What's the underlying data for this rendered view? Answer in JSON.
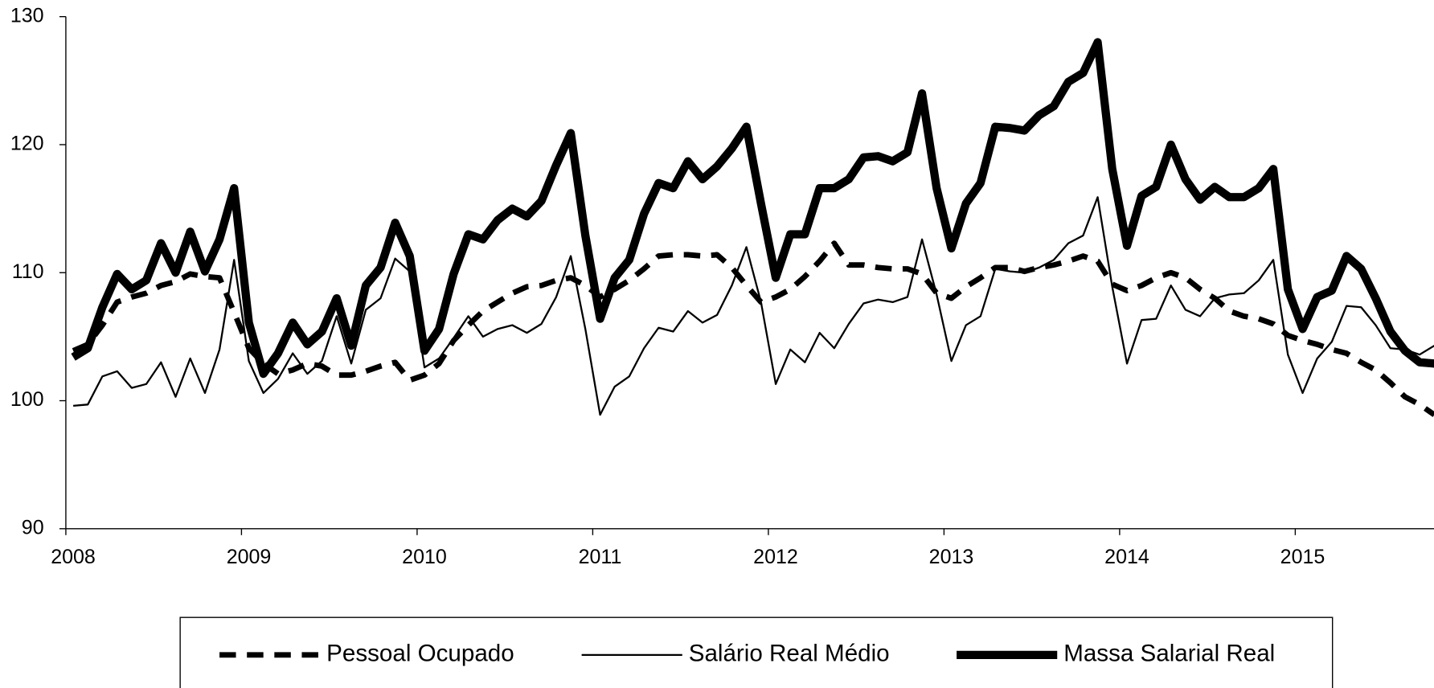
{
  "chart_data": {
    "type": "line",
    "x": [
      2008.042,
      2008.125,
      2008.208,
      2008.292,
      2008.375,
      2008.458,
      2008.542,
      2008.625,
      2008.708,
      2008.792,
      2008.875,
      2008.958,
      2009.042,
      2009.125,
      2009.208,
      2009.292,
      2009.375,
      2009.458,
      2009.542,
      2009.625,
      2009.708,
      2009.792,
      2009.875,
      2009.958,
      2010.042,
      2010.125,
      2010.208,
      2010.292,
      2010.375,
      2010.458,
      2010.542,
      2010.625,
      2010.708,
      2010.792,
      2010.875,
      2010.958,
      2011.042,
      2011.125,
      2011.208,
      2011.292,
      2011.375,
      2011.458,
      2011.542,
      2011.625,
      2011.708,
      2011.792,
      2011.875,
      2011.958,
      2012.042,
      2012.125,
      2012.208,
      2012.292,
      2012.375,
      2012.458,
      2012.542,
      2012.625,
      2012.708,
      2012.792,
      2012.875,
      2012.958,
      2013.042,
      2013.125,
      2013.208,
      2013.292,
      2013.375,
      2013.458,
      2013.542,
      2013.625,
      2013.708,
      2013.792,
      2013.875,
      2013.958,
      2014.042,
      2014.125,
      2014.208,
      2014.292,
      2014.375,
      2014.458,
      2014.542,
      2014.625,
      2014.708,
      2014.792,
      2014.875,
      2014.958,
      2015.042,
      2015.125,
      2015.208,
      2015.292,
      2015.375,
      2015.458,
      2015.542,
      2015.625,
      2015.708,
      2015.792
    ],
    "series": [
      {
        "name": "Pessoal Ocupado",
        "color": "#000000",
        "line_width": 6,
        "dashed": true,
        "values": [
          103.9,
          104.4,
          105.9,
          107.7,
          108.1,
          108.4,
          109.0,
          109.3,
          109.9,
          109.7,
          109.6,
          106.9,
          104.1,
          102.9,
          102.1,
          102.4,
          102.9,
          102.7,
          102.0,
          102.0,
          102.3,
          102.7,
          103.0,
          101.6,
          102.0,
          102.9,
          104.7,
          105.9,
          107.0,
          107.7,
          108.4,
          108.9,
          109.0,
          109.4,
          109.6,
          109.0,
          108.1,
          108.7,
          109.4,
          110.3,
          111.3,
          111.4,
          111.4,
          111.3,
          111.4,
          110.4,
          109.0,
          107.7,
          108.1,
          108.7,
          109.7,
          110.9,
          112.3,
          110.6,
          110.6,
          110.4,
          110.3,
          110.3,
          109.9,
          108.4,
          108.0,
          108.9,
          109.6,
          110.4,
          110.4,
          110.1,
          110.4,
          110.6,
          110.9,
          111.3,
          110.9,
          109.1,
          108.6,
          109.0,
          109.6,
          110.0,
          109.6,
          108.7,
          108.0,
          107.0,
          106.6,
          106.4,
          106.0,
          105.1,
          104.7,
          104.4,
          104.0,
          103.7,
          103.0,
          102.4,
          101.4,
          100.3,
          99.7,
          98.9
        ]
      },
      {
        "name": "Salário Real Médio",
        "color": "#000000",
        "line_width": 2,
        "dashed": false,
        "values": [
          99.6,
          99.7,
          101.9,
          102.3,
          101.0,
          101.3,
          103.0,
          100.3,
          103.3,
          100.6,
          104.0,
          111.0,
          103.1,
          100.6,
          101.7,
          103.7,
          102.1,
          103.1,
          106.6,
          102.9,
          107.1,
          108.0,
          111.1,
          110.1,
          102.6,
          103.3,
          104.9,
          106.6,
          105.0,
          105.6,
          105.9,
          105.3,
          106.0,
          108.1,
          111.3,
          105.6,
          98.9,
          101.1,
          101.9,
          104.1,
          105.7,
          105.4,
          107.0,
          106.1,
          106.7,
          109.0,
          112.0,
          107.7,
          101.3,
          104.0,
          103.0,
          105.3,
          104.1,
          106.0,
          107.6,
          107.9,
          107.7,
          108.1,
          112.6,
          108.3,
          103.1,
          105.9,
          106.6,
          110.3,
          110.1,
          110.0,
          110.4,
          111.0,
          112.3,
          112.9,
          115.9,
          108.9,
          102.9,
          106.3,
          106.4,
          109.0,
          107.1,
          106.6,
          108.0,
          108.3,
          108.4,
          109.4,
          111.0,
          103.6,
          100.6,
          103.3,
          104.6,
          107.4,
          107.3,
          105.9,
          104.1,
          104.0,
          103.6,
          104.3
        ]
      },
      {
        "name": "Massa Salarial Real",
        "color": "#000000",
        "line_width": 9,
        "dashed": false,
        "values": [
          103.4,
          104.1,
          107.3,
          109.9,
          108.7,
          109.4,
          112.3,
          110.0,
          113.2,
          110.1,
          112.6,
          116.6,
          106.1,
          102.1,
          103.7,
          106.1,
          104.4,
          105.4,
          108.0,
          104.3,
          109.0,
          110.4,
          113.9,
          111.3,
          103.9,
          105.6,
          109.9,
          113.0,
          112.6,
          114.1,
          115.0,
          114.4,
          115.6,
          118.4,
          120.9,
          112.9,
          106.4,
          109.6,
          111.0,
          114.6,
          117.0,
          116.6,
          118.7,
          117.3,
          118.3,
          119.7,
          121.4,
          115.4,
          109.6,
          113.0,
          113.0,
          116.6,
          116.6,
          117.3,
          119.0,
          119.1,
          118.7,
          119.4,
          124.0,
          116.6,
          111.9,
          115.4,
          117.0,
          121.4,
          121.3,
          121.1,
          122.3,
          123.0,
          124.9,
          125.6,
          128.0,
          118.1,
          112.1,
          116.0,
          116.7,
          120.0,
          117.3,
          115.7,
          116.7,
          115.9,
          115.9,
          116.6,
          118.1,
          108.7,
          105.6,
          108.1,
          108.6,
          111.3,
          110.3,
          108.0,
          105.4,
          103.9,
          103.0,
          102.9
        ]
      }
    ],
    "xlim": [
      2008,
      2015.79
    ],
    "xticks": [
      2008,
      2009,
      2010,
      2011,
      2012,
      2013,
      2014,
      2015
    ],
    "ylim": [
      90,
      130
    ],
    "yticks": [
      90,
      100,
      110,
      120,
      130
    ],
    "grid": false,
    "legend": "bottom"
  }
}
